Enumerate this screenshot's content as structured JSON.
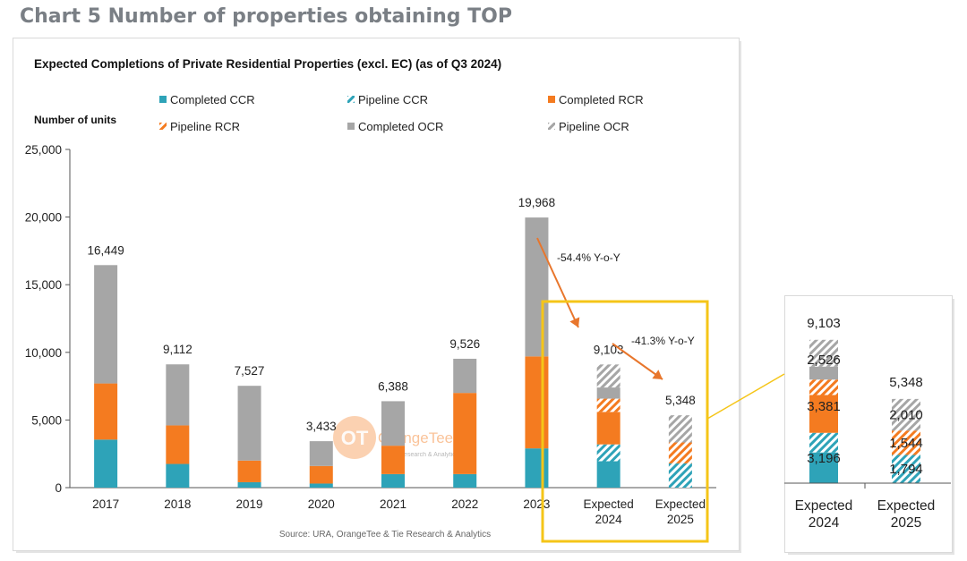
{
  "page_heading": "Chart 5 Number of properties obtaining TOP",
  "colors": {
    "ccr": "#2ea3b8",
    "rcr": "#f47b20",
    "ocr": "#a6a6a6",
    "highlight": "#f5c518",
    "arrow": "#e8762c"
  },
  "chart_data": {
    "type": "bar",
    "stacked": true,
    "title": "Expected Completions of Private Residential Properties (excl. EC) (as of Q3 2024)",
    "ylabel": "Number of units",
    "ylim": [
      0,
      25000
    ],
    "yticks": [
      "0",
      "5,000",
      "10,000",
      "15,000",
      "20,000",
      "25,000"
    ],
    "ytick_values": [
      0,
      5000,
      10000,
      15000,
      20000,
      25000
    ],
    "categories": [
      "2017",
      "2018",
      "2019",
      "2020",
      "2021",
      "2022",
      "2023",
      "Expected\n2024",
      "Expected\n2025"
    ],
    "category_lines": [
      [
        "2017"
      ],
      [
        "2018"
      ],
      [
        "2019"
      ],
      [
        "2020"
      ],
      [
        "2021"
      ],
      [
        "2022"
      ],
      [
        "2023"
      ],
      [
        "Expected",
        "2024"
      ],
      [
        "Expected",
        "2025"
      ]
    ],
    "series": [
      {
        "name": "Completed CCR",
        "key": "ccr",
        "pattern": "solid",
        "values": [
          3550,
          1750,
          400,
          300,
          1000,
          1000,
          2900,
          1950,
          0
        ]
      },
      {
        "name": "Pipeline CCR",
        "key": "ccr",
        "pattern": "hatch",
        "values": [
          0,
          0,
          0,
          0,
          0,
          0,
          0,
          1246,
          1794
        ]
      },
      {
        "name": "Completed RCR",
        "key": "rcr",
        "pattern": "solid",
        "values": [
          4150,
          2850,
          1600,
          1300,
          2100,
          6000,
          6800,
          2401,
          0
        ]
      },
      {
        "name": "Pipeline RCR",
        "key": "rcr",
        "pattern": "hatch",
        "values": [
          0,
          0,
          0,
          0,
          0,
          0,
          0,
          980,
          1544
        ]
      },
      {
        "name": "Completed OCR",
        "key": "ocr",
        "pattern": "solid",
        "values": [
          8749,
          4512,
          5527,
          1833,
          3288,
          2526,
          10268,
          826,
          0
        ]
      },
      {
        "name": "Pipeline OCR",
        "key": "ocr",
        "pattern": "hatch",
        "values": [
          0,
          0,
          0,
          0,
          0,
          0,
          0,
          1700,
          2010
        ]
      }
    ],
    "legend_order": [
      [
        "Completed CCR",
        "Pipeline CCR",
        "Completed RCR"
      ],
      [
        "Pipeline RCR",
        "Completed OCR",
        "Pipeline OCR"
      ]
    ],
    "totals": [
      "16,449",
      "9,112",
      "7,527",
      "3,433",
      "6,388",
      "9,526",
      "19,968",
      "9,103",
      "5,348"
    ],
    "total_values": [
      16449,
      9112,
      7527,
      3433,
      6388,
      9526,
      19968,
      9103,
      5348
    ],
    "annotations": [
      {
        "text": "-54.4% Y-o-Y",
        "from": "2023",
        "to": "Expected\n2024"
      },
      {
        "text": "-41.3% Y-o-Y",
        "from": "Expected\n2024",
        "to": "Expected\n2025"
      }
    ],
    "source": "Source: URA, OrangeTee & Tie Research & Analytics",
    "watermark": "OrangeTee",
    "watermark_sub": "Research & Analytics"
  },
  "zoom_panel": {
    "categories": [
      [
        "Expected",
        "2024"
      ],
      [
        "Expected",
        "2025"
      ]
    ],
    "totals": [
      "9,103",
      "5,348"
    ],
    "segments": [
      {
        "ccr_pipeline_label": "3,196",
        "rcr_label": "3,381",
        "ocr_label": "2,526",
        "ccr": 3196,
        "rcr": 3381,
        "ocr": 2526
      },
      {
        "ccr_pipeline_label": "1,794",
        "rcr_label": "1,544",
        "ocr_label": "2,010",
        "ccr": 1794,
        "rcr": 1544,
        "ocr": 2010
      }
    ]
  }
}
